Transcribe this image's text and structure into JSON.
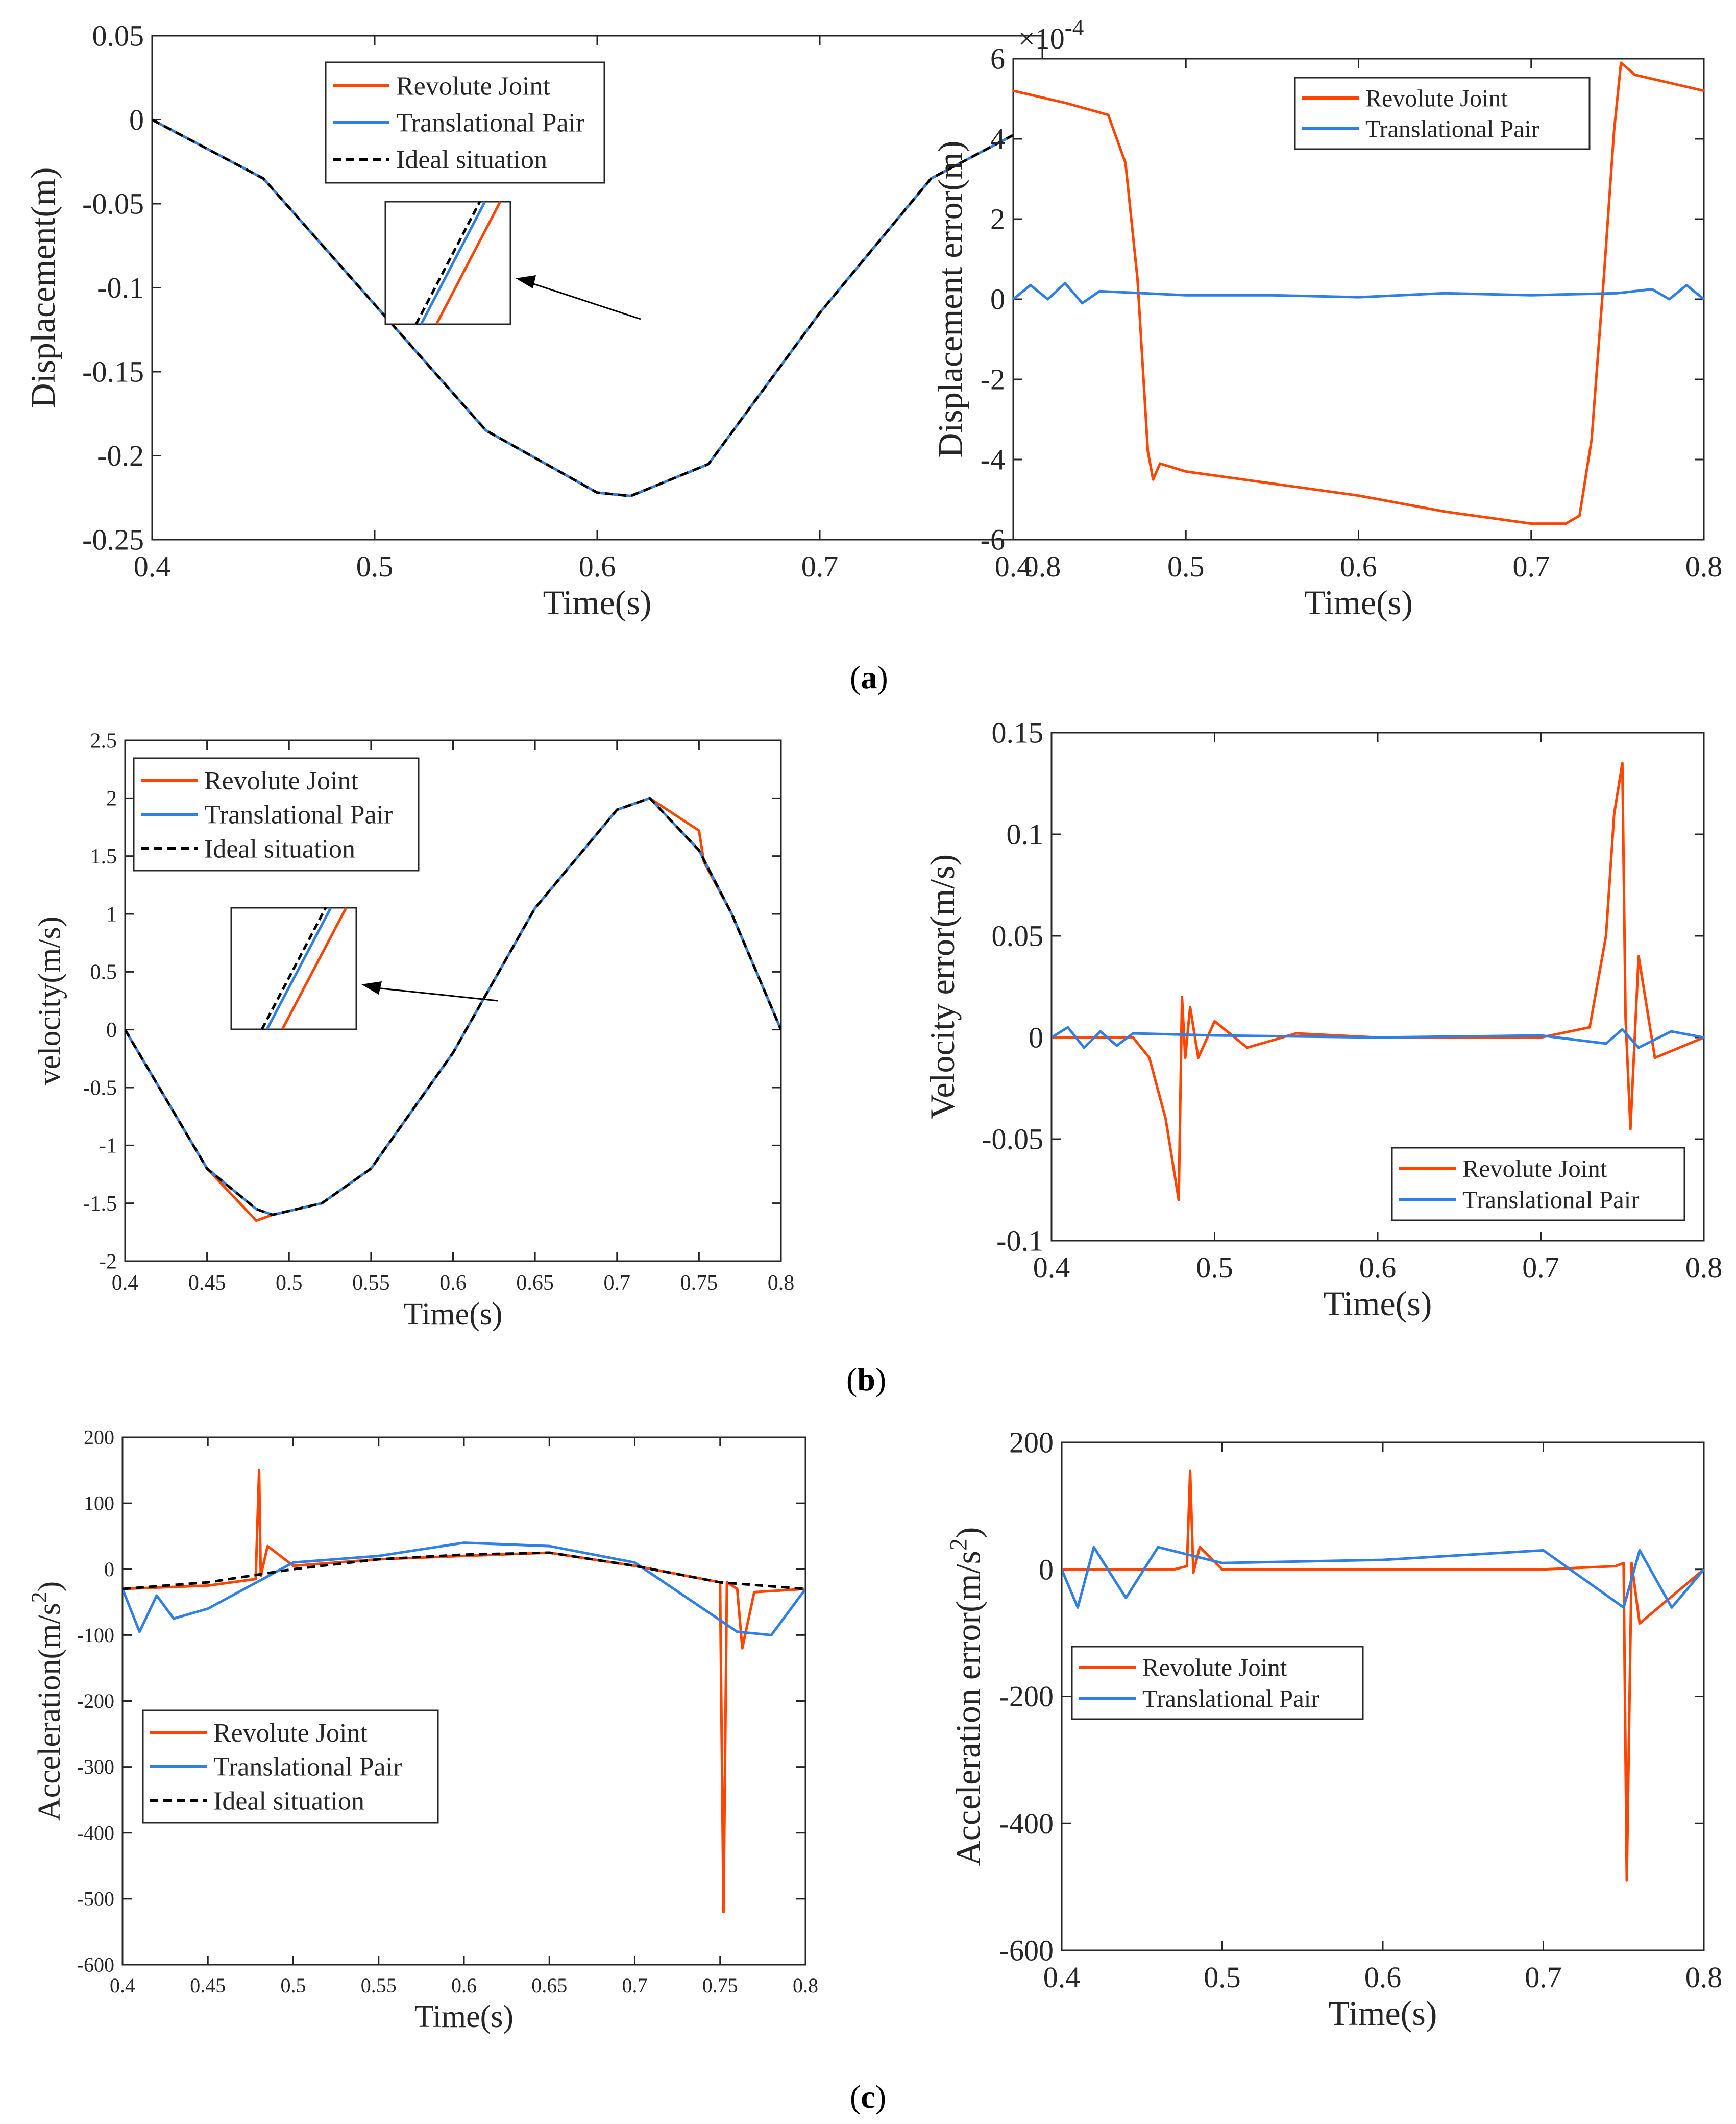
{
  "figure": {
    "panel_labels": {
      "a": "a",
      "b": "b",
      "c": "c"
    },
    "colors": {
      "revolute": "#ff4500",
      "translational": "#2e7fe8",
      "ideal": "#000000",
      "axes": "#262626"
    }
  },
  "chart_data": [
    {
      "id": "a-left",
      "type": "line",
      "xlabel": "Time(s)",
      "ylabel": "Displacement(m)",
      "xlim": [
        0.4,
        0.8
      ],
      "ylim": [
        -0.25,
        0.05
      ],
      "xticks": [
        0.4,
        0.5,
        0.6,
        0.7,
        0.8
      ],
      "xtick_labels": [
        "0.4",
        "0.5",
        "0.6",
        "0.7",
        "0.8"
      ],
      "yticks": [
        0.05,
        0,
        -0.05,
        -0.1,
        -0.15,
        -0.2,
        -0.25
      ],
      "ytick_labels": [
        "0.05",
        "0",
        "-0.05",
        "-0.1",
        "-0.15",
        "-0.2",
        "-0.25"
      ],
      "legend": {
        "position": "top-center",
        "entries": [
          "Revolute Joint",
          "Translational Pair",
          "Ideal situation"
        ]
      },
      "inset": "zoom of curves near x=0.7",
      "series": [
        {
          "name": "Revolute Joint",
          "x": [
            0.4,
            0.45,
            0.5,
            0.55,
            0.6,
            0.615,
            0.65,
            0.7,
            0.75,
            0.8
          ],
          "y": [
            0,
            -0.035,
            -0.11,
            -0.185,
            -0.222,
            -0.224,
            -0.205,
            -0.115,
            -0.035,
            0
          ]
        },
        {
          "name": "Translational Pair",
          "x": [
            0.4,
            0.45,
            0.5,
            0.55,
            0.6,
            0.615,
            0.65,
            0.7,
            0.75,
            0.8
          ],
          "y": [
            0,
            -0.035,
            -0.11,
            -0.185,
            -0.222,
            -0.224,
            -0.205,
            -0.115,
            -0.035,
            0
          ]
        },
        {
          "name": "Ideal situation",
          "x": [
            0.4,
            0.45,
            0.5,
            0.55,
            0.6,
            0.615,
            0.65,
            0.7,
            0.75,
            0.8
          ],
          "y": [
            0,
            -0.035,
            -0.11,
            -0.185,
            -0.222,
            -0.224,
            -0.205,
            -0.115,
            -0.035,
            0
          ]
        }
      ]
    },
    {
      "id": "a-right",
      "type": "line",
      "xlabel": "Time(s)",
      "ylabel": "Displacement error(m)",
      "exponent_label": "×10",
      "exponent_power": "-4",
      "xlim": [
        0.4,
        0.8
      ],
      "ylim": [
        -6,
        6
      ],
      "xticks": [
        0.4,
        0.5,
        0.6,
        0.7,
        0.8
      ],
      "xtick_labels": [
        "0.4",
        "0.5",
        "0.6",
        "0.7",
        "0.8"
      ],
      "yticks": [
        6,
        4,
        2,
        0,
        -2,
        -4,
        -6
      ],
      "ytick_labels": [
        "6",
        "4",
        "2",
        "0",
        "-2",
        "-4",
        "-6"
      ],
      "legend": {
        "position": "top-right",
        "entries": [
          "Revolute Joint",
          "Translational Pair"
        ]
      },
      "series": [
        {
          "name": "Revolute Joint",
          "x": [
            0.4,
            0.43,
            0.455,
            0.465,
            0.472,
            0.478,
            0.481,
            0.485,
            0.5,
            0.55,
            0.6,
            0.65,
            0.7,
            0.72,
            0.728,
            0.735,
            0.742,
            0.748,
            0.752,
            0.76,
            0.8
          ],
          "y": [
            5.2,
            4.9,
            4.6,
            3.4,
            0.5,
            -3.8,
            -4.5,
            -4.1,
            -4.3,
            -4.6,
            -4.9,
            -5.3,
            -5.6,
            -5.6,
            -5.4,
            -3.5,
            0.5,
            4.2,
            5.9,
            5.6,
            5.2
          ]
        },
        {
          "name": "Translational Pair",
          "x": [
            0.4,
            0.41,
            0.42,
            0.43,
            0.44,
            0.45,
            0.5,
            0.55,
            0.6,
            0.65,
            0.7,
            0.75,
            0.77,
            0.78,
            0.79,
            0.8
          ],
          "y": [
            0,
            0.35,
            0,
            0.4,
            -0.1,
            0.2,
            0.1,
            0.1,
            0.05,
            0.15,
            0.1,
            0.15,
            0.25,
            0,
            0.35,
            0
          ]
        }
      ]
    },
    {
      "id": "b-left",
      "type": "line",
      "xlabel": "Time(s)",
      "ylabel": "velocity(m/s)",
      "xlim": [
        0.4,
        0.8
      ],
      "ylim": [
        -2,
        2.5
      ],
      "xticks": [
        0.4,
        0.45,
        0.5,
        0.55,
        0.6,
        0.65,
        0.7,
        0.75,
        0.8
      ],
      "xtick_labels": [
        "0.4",
        "0.45",
        "0.5",
        "0.55",
        "0.6",
        "0.65",
        "0.7",
        "0.75",
        "0.8"
      ],
      "yticks": [
        2.5,
        2,
        1.5,
        1,
        0.5,
        0,
        -0.5,
        -1,
        -1.5,
        -2
      ],
      "ytick_labels": [
        "2.5",
        "2",
        "1.5",
        "1",
        "0.5",
        "0",
        "-0.5",
        "-1",
        "-1.5",
        "-2"
      ],
      "legend": {
        "position": "top-left",
        "entries": [
          "Revolute Joint",
          "Translational Pair",
          "Ideal situation"
        ]
      },
      "inset": "zoom of curves near x=0.62",
      "series": [
        {
          "name": "Revolute Joint",
          "x": [
            0.4,
            0.45,
            0.48,
            0.49,
            0.52,
            0.55,
            0.6,
            0.65,
            0.7,
            0.72,
            0.75,
            0.753,
            0.77,
            0.8
          ],
          "y": [
            0,
            -1.2,
            -1.65,
            -1.6,
            -1.5,
            -1.2,
            -0.2,
            1.05,
            1.9,
            2.0,
            1.72,
            1.45,
            1.0,
            0
          ]
        },
        {
          "name": "Translational Pair",
          "x": [
            0.4,
            0.45,
            0.48,
            0.49,
            0.52,
            0.55,
            0.6,
            0.65,
            0.7,
            0.72,
            0.75,
            0.77,
            0.8
          ],
          "y": [
            0,
            -1.2,
            -1.55,
            -1.6,
            -1.5,
            -1.2,
            -0.2,
            1.05,
            1.9,
            2.0,
            1.55,
            1.0,
            0
          ]
        },
        {
          "name": "Ideal situation",
          "x": [
            0.4,
            0.45,
            0.48,
            0.49,
            0.52,
            0.55,
            0.6,
            0.65,
            0.7,
            0.72,
            0.75,
            0.77,
            0.8
          ],
          "y": [
            0,
            -1.2,
            -1.55,
            -1.6,
            -1.5,
            -1.2,
            -0.2,
            1.05,
            1.9,
            2.0,
            1.55,
            1.0,
            0
          ]
        }
      ]
    },
    {
      "id": "b-right",
      "type": "line",
      "xlabel": "Time(s)",
      "ylabel": "Velocity error(m/s)",
      "xlim": [
        0.4,
        0.8
      ],
      "ylim": [
        -0.1,
        0.15
      ],
      "xticks": [
        0.4,
        0.5,
        0.6,
        0.7,
        0.8
      ],
      "xtick_labels": [
        "0.4",
        "0.5",
        "0.6",
        "0.7",
        "0.8"
      ],
      "yticks": [
        0.15,
        0.1,
        0.05,
        0,
        -0.05,
        -0.1
      ],
      "ytick_labels": [
        "0.15",
        "0.1",
        "0.05",
        "0",
        "-0.05",
        "-0.1"
      ],
      "legend": {
        "position": "bottom-right",
        "entries": [
          "Revolute Joint",
          "Translational Pair"
        ]
      },
      "series": [
        {
          "name": "Revolute Joint",
          "x": [
            0.4,
            0.45,
            0.46,
            0.47,
            0.478,
            0.48,
            0.482,
            0.485,
            0.49,
            0.5,
            0.52,
            0.55,
            0.6,
            0.7,
            0.73,
            0.74,
            0.745,
            0.75,
            0.752,
            0.755,
            0.76,
            0.77,
            0.8
          ],
          "y": [
            0,
            0,
            -0.01,
            -0.04,
            -0.08,
            0.02,
            -0.01,
            0.015,
            -0.01,
            0.008,
            -0.005,
            0.002,
            0,
            0,
            0.005,
            0.05,
            0.11,
            0.135,
            0.01,
            -0.045,
            0.04,
            -0.01,
            0
          ]
        },
        {
          "name": "Translational Pair",
          "x": [
            0.4,
            0.41,
            0.42,
            0.43,
            0.44,
            0.45,
            0.5,
            0.6,
            0.7,
            0.74,
            0.75,
            0.76,
            0.78,
            0.8
          ],
          "y": [
            0,
            0.005,
            -0.005,
            0.003,
            -0.004,
            0.002,
            0.001,
            0,
            0.001,
            -0.003,
            0.004,
            -0.005,
            0.003,
            0
          ]
        }
      ]
    },
    {
      "id": "c-left",
      "type": "line",
      "xlabel": "Time(s)",
      "ylabel": "Acceleration(m/s",
      "ylabel_sup": "2",
      "ylabel_close": ")",
      "xlim": [
        0.4,
        0.8
      ],
      "ylim": [
        -600,
        200
      ],
      "xticks": [
        0.4,
        0.45,
        0.5,
        0.55,
        0.6,
        0.65,
        0.7,
        0.75,
        0.8
      ],
      "xtick_labels": [
        "0.4",
        "0.45",
        "0.5",
        "0.55",
        "0.6",
        "0.65",
        "0.7",
        "0.75",
        "0.8"
      ],
      "yticks": [
        200,
        100,
        0,
        -100,
        -200,
        -300,
        -400,
        -500,
        -600
      ],
      "ytick_labels": [
        "200",
        "100",
        "0",
        "-100",
        "-200",
        "-300",
        "-400",
        "-500",
        "-600"
      ],
      "legend": {
        "position": "bottom-left",
        "entries": [
          "Revolute Joint",
          "Translational Pair",
          "Ideal situation"
        ]
      },
      "series": [
        {
          "name": "Revolute Joint",
          "x": [
            0.4,
            0.45,
            0.478,
            0.48,
            0.481,
            0.485,
            0.5,
            0.55,
            0.6,
            0.65,
            0.7,
            0.74,
            0.75,
            0.752,
            0.754,
            0.76,
            0.763,
            0.77,
            0.8
          ],
          "y": [
            -30,
            -25,
            -15,
            150,
            -10,
            35,
            5,
            15,
            20,
            25,
            5,
            -15,
            -20,
            -520,
            -20,
            -30,
            -120,
            -35,
            -30
          ]
        },
        {
          "name": "Translational Pair",
          "x": [
            0.4,
            0.41,
            0.42,
            0.43,
            0.45,
            0.5,
            0.55,
            0.6,
            0.65,
            0.7,
            0.74,
            0.76,
            0.78,
            0.8
          ],
          "y": [
            -30,
            -95,
            -40,
            -75,
            -60,
            10,
            20,
            40,
            35,
            10,
            -60,
            -95,
            -100,
            -30
          ]
        },
        {
          "name": "Ideal situation",
          "x": [
            0.4,
            0.45,
            0.5,
            0.55,
            0.6,
            0.65,
            0.7,
            0.75,
            0.8
          ],
          "y": [
            -30,
            -20,
            0,
            15,
            22,
            25,
            5,
            -20,
            -30
          ]
        }
      ]
    },
    {
      "id": "c-right",
      "type": "line",
      "xlabel": "Time(s)",
      "ylabel": "Acceleration error(m/s",
      "ylabel_sup": "2",
      "ylabel_close": ")",
      "xlim": [
        0.4,
        0.8
      ],
      "ylim": [
        -600,
        200
      ],
      "xticks": [
        0.4,
        0.5,
        0.6,
        0.7,
        0.8
      ],
      "xtick_labels": [
        "0.4",
        "0.5",
        "0.6",
        "0.7",
        "0.8"
      ],
      "yticks": [
        200,
        0,
        -200,
        -400,
        -600
      ],
      "ytick_labels": [
        "200",
        "0",
        "-200",
        "-400",
        "-600"
      ],
      "legend": {
        "position": "middle-left",
        "entries": [
          "Revolute Joint",
          "Translational Pair"
        ]
      },
      "series": [
        {
          "name": "Revolute Joint",
          "x": [
            0.4,
            0.47,
            0.478,
            0.48,
            0.482,
            0.486,
            0.5,
            0.6,
            0.7,
            0.745,
            0.75,
            0.752,
            0.755,
            0.76,
            0.8
          ],
          "y": [
            0,
            0,
            5,
            155,
            -5,
            35,
            0,
            0,
            0,
            5,
            10,
            -490,
            10,
            -85,
            0
          ]
        },
        {
          "name": "Translational Pair",
          "x": [
            0.4,
            0.41,
            0.42,
            0.44,
            0.46,
            0.5,
            0.6,
            0.7,
            0.75,
            0.76,
            0.78,
            0.8
          ],
          "y": [
            0,
            -60,
            35,
            -45,
            35,
            10,
            15,
            30,
            -60,
            30,
            -60,
            0
          ]
        }
      ]
    }
  ]
}
